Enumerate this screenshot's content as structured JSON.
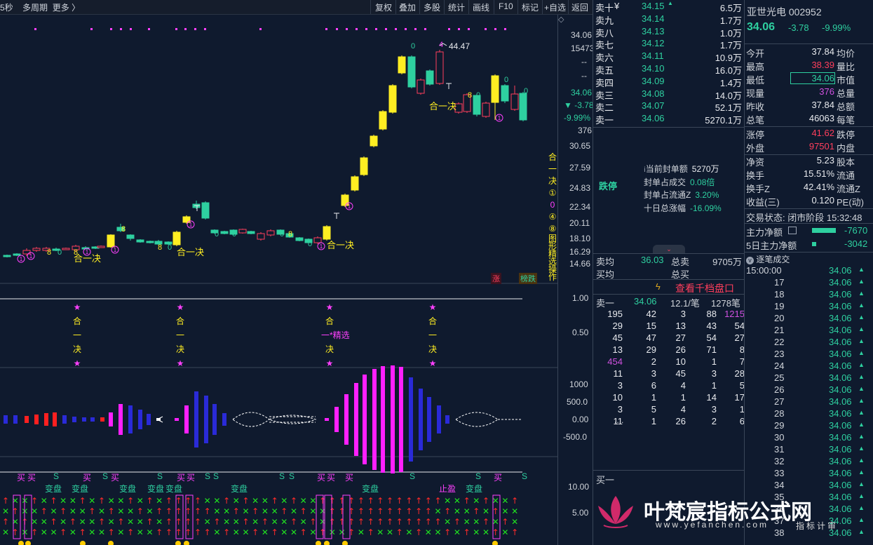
{
  "toolbar": {
    "period": "5秒",
    "multi": "多周期",
    "more": "更多",
    "buttons": [
      "复权",
      "叠加",
      "多股",
      "统计",
      "画线",
      "F10",
      "标记",
      "+自选",
      "返回"
    ]
  },
  "main_chart": {
    "right_axis": {
      "top_price": "34.06",
      "top_vol": "15473",
      "dash1": "--",
      "dash2": "--",
      "cur": "34.06",
      "chg": "▼ -3.78",
      "pct": "-9.99%",
      "vol": "376",
      "levels": [
        "30.65",
        "27.59",
        "24.83",
        "22.34",
        "20.11",
        "18.10",
        "16.29",
        "14.66"
      ]
    },
    "high_label": "44.47",
    "signal_word_chars": [
      "合",
      "一",
      "决"
    ],
    "side_vertical": [
      "合",
      "一",
      "决",
      "①",
      "0",
      "④",
      "⑧",
      "图",
      "形",
      "精",
      "选",
      "操",
      "作"
    ],
    "label_hejue": "合一决",
    "label_zhang": "涨",
    "label_bangdie": "榜跌",
    "count_labels": [
      "0",
      "8",
      "0",
      "8",
      "①",
      "4",
      "T"
    ]
  },
  "panel2": {
    "levels": [
      "1.00",
      "0.50"
    ],
    "signal": [
      "★",
      "合",
      "一",
      "决",
      "★"
    ],
    "jingxuan": "一*精选"
  },
  "panel3": {
    "levels": [
      "1000",
      "500.0",
      "0.00",
      "-500.0"
    ]
  },
  "panel4": {
    "levels": [
      "10.00",
      "5.00"
    ],
    "labels": [
      "买",
      "S",
      "变盘",
      "止盈"
    ]
  },
  "orderbook": {
    "asks": [
      {
        "name": "卖十",
        "price": "34.15",
        "vol": "6.5万"
      },
      {
        "name": "卖九",
        "price": "34.14",
        "vol": "1.7万"
      },
      {
        "name": "卖八",
        "price": "34.13",
        "vol": "1.0万"
      },
      {
        "name": "卖七",
        "price": "34.12",
        "vol": "1.7万"
      },
      {
        "name": "卖六",
        "price": "34.11",
        "vol": "10.9万"
      },
      {
        "name": "卖五",
        "price": "34.10",
        "vol": "16.0万"
      },
      {
        "name": "卖四",
        "price": "34.09",
        "vol": "1.4万"
      },
      {
        "name": "卖三",
        "price": "34.08",
        "vol": "14.0万"
      },
      {
        "name": "卖二",
        "price": "34.07",
        "vol": "52.1万"
      },
      {
        "name": "卖一",
        "price": "34.06",
        "vol": "5270.1万"
      }
    ],
    "ask10_suffix": "¥",
    "limit_down": "跌停",
    "limit_info": [
      {
        "label": "当前封单额",
        "value": "5270万"
      },
      {
        "label": "封单占成交",
        "value": "0.08倍"
      },
      {
        "label": "封单占流通Z",
        "value": "3.20%"
      },
      {
        "label": "十日总涨幅",
        "value": "-16.09%"
      }
    ],
    "sell_avg_label": "卖均",
    "sell_avg": "36.03",
    "total_sell_label": "总卖",
    "total_sell": "9705万",
    "buy_avg_label": "买均",
    "total_buy_label": "总买",
    "thousand_btn": "查看千档盘口",
    "level1_label": "卖一",
    "level1_price": "34.06",
    "level1_avg": "12.1/笔",
    "level1_count": "1278笔",
    "queue": [
      [
        "195",
        "42",
        "3",
        "88",
        "1215"
      ],
      [
        "29",
        "15",
        "13",
        "43",
        "54"
      ],
      [
        "45",
        "47",
        "27",
        "54",
        "27"
      ],
      [
        "13",
        "29",
        "26",
        "71",
        "8"
      ],
      [
        "454",
        "2",
        "10",
        "1",
        "7"
      ],
      [
        "11",
        "3",
        "45",
        "3",
        "28"
      ],
      [
        "3",
        "6",
        "4",
        "1",
        "5"
      ],
      [
        "10",
        "1",
        "1",
        "14",
        "17"
      ],
      [
        "3",
        "5",
        "4",
        "3",
        "1"
      ],
      [
        "11",
        "1",
        "26",
        "2",
        "6"
      ]
    ],
    "ellipsis": "....",
    "buy1_label": "买一"
  },
  "quote": {
    "name": "亚世光电",
    "code": "002952",
    "price": "34.06",
    "change": "-3.78",
    "pct": "-9.99%",
    "rows": [
      {
        "l": "今开",
        "v": "37.84",
        "r": "均价"
      },
      {
        "l": "最高",
        "v": "38.39",
        "r": "量比"
      },
      {
        "l": "最低",
        "v": "34.06",
        "r": "市值"
      },
      {
        "l": "现量",
        "v": "376",
        "r": "总量"
      },
      {
        "l": "昨收",
        "v": "37.84",
        "r": "总额"
      },
      {
        "l": "总笔",
        "v": "46063",
        "r": "每笔"
      },
      {
        "l": "涨停",
        "v": "41.62",
        "r": "跌停"
      },
      {
        "l": "外盘",
        "v": "97501",
        "r": "内盘"
      },
      {
        "l": "净资",
        "v": "5.23",
        "r": "股本"
      },
      {
        "l": "换手",
        "v": "15.51%",
        "r": "流通"
      },
      {
        "l": "换手Z",
        "v": "42.41%",
        "r": "流通Z"
      },
      {
        "l": "收益(三)",
        "v": "0.120",
        "r": "PE(动)"
      }
    ],
    "status_label": "交易状态:",
    "status": "闭市阶段",
    "time": "15:32:48",
    "main_flow_label": "主力净额",
    "main_flow": "-7670",
    "main5_label": "5日主力净额",
    "main5": "-3042",
    "ticks_title": "逐笔成交",
    "ticks": [
      {
        "t": "15:00:00",
        "p": "34.06"
      },
      {
        "t": "17",
        "p": "34.06"
      },
      {
        "t": "18",
        "p": "34.06"
      },
      {
        "t": "19",
        "p": "34.06"
      },
      {
        "t": "20",
        "p": "34.06"
      },
      {
        "t": "21",
        "p": "34.06"
      },
      {
        "t": "22",
        "p": "34.06"
      },
      {
        "t": "23",
        "p": "34.06"
      },
      {
        "t": "24",
        "p": "34.06"
      },
      {
        "t": "25",
        "p": "34.06"
      },
      {
        "t": "26",
        "p": "34.06"
      },
      {
        "t": "27",
        "p": "34.06"
      },
      {
        "t": "28",
        "p": "34.06"
      },
      {
        "t": "29",
        "p": "34.06"
      },
      {
        "t": "30",
        "p": "34.06"
      },
      {
        "t": "31",
        "p": "34.06"
      },
      {
        "t": "32",
        "p": "34.06"
      },
      {
        "t": "33",
        "p": "34.06"
      },
      {
        "t": "34",
        "p": "34.06"
      },
      {
        "t": "35",
        "p": "34.06"
      },
      {
        "t": "36",
        "p": "34.06"
      },
      {
        "t": "37",
        "p": "34.06"
      },
      {
        "t": "38",
        "p": "34.06"
      }
    ]
  },
  "watermark": {
    "title": "叶梵宸指标公式网",
    "url": "www.yefanchen.com",
    "sub": "指标计审"
  },
  "colors": {
    "bg": "#0f1a2e",
    "up": "#ff3e5c",
    "down": "#2ed0a0",
    "yellow": "#ffee22",
    "magenta": "#ff40ff"
  }
}
